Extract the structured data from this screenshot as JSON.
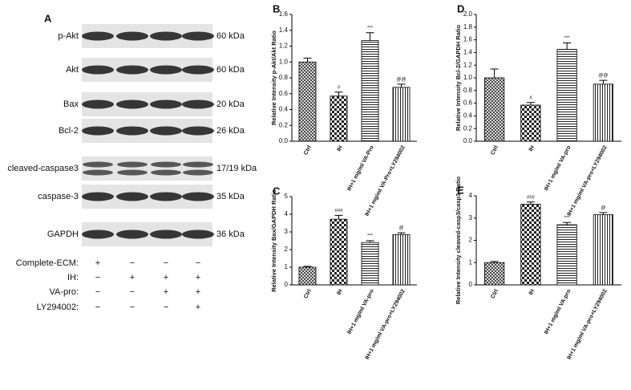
{
  "blot": {
    "panel": "A",
    "rows": [
      {
        "label": "p-Akt",
        "size": "60 kDa"
      },
      {
        "label": "Akt",
        "size": "60 kDa"
      },
      {
        "label": "Bax",
        "size": "20 kDa"
      },
      {
        "label": "Bcl-2",
        "size": "26 kDa"
      },
      {
        "label": "cleaved-caspase3",
        "size": "17/19 kDa"
      },
      {
        "label": "caspase-3",
        "size": "35 kDa"
      },
      {
        "label": "GAPDH",
        "size": "36 kDa"
      }
    ],
    "conditions": [
      {
        "label": "Complete-ECM:",
        "signs": [
          "+",
          "−",
          "−",
          "−"
        ]
      },
      {
        "label": "IH:",
        "signs": [
          "−",
          "+",
          "+",
          "+"
        ]
      },
      {
        "label": "VA-pro:",
        "signs": [
          "−",
          "−",
          "+",
          "+"
        ]
      },
      {
        "label": "LY294002:",
        "signs": [
          "−",
          "−",
          "−",
          "+"
        ]
      }
    ]
  },
  "chart_data": [
    {
      "type": "bar",
      "panel": "B",
      "y_label": "Relative Intensity p-Akt/Akt Ratio",
      "categories": [
        "Ctrl",
        "IH",
        "IH+1 mg/ml VA-Pro",
        "IH+1 mg/ml VA-Pro+LY294002"
      ],
      "values": [
        1.0,
        0.57,
        1.27,
        0.68
      ],
      "errors": [
        0.05,
        0.05,
        0.1,
        0.04
      ],
      "annotations": [
        null,
        "#",
        "***",
        "@@"
      ],
      "patterns": [
        "crosshatch",
        "checker",
        "horizontal",
        "vertical"
      ],
      "ylim": [
        0,
        1.6
      ],
      "yticks": [
        {
          "value": 0,
          "label": "0.0"
        },
        0.2,
        0.4,
        0.6,
        0.8,
        {
          "value": 1,
          "label": "1.0"
        },
        1.2,
        1.4,
        1.6
      ]
    },
    {
      "type": "bar",
      "panel": "D",
      "y_label": "Relative Intensity Bcl-2/GAPDH Ratio",
      "categories": [
        "Ctrl",
        "IH",
        "IH+1 mg/ml VA-pro",
        "IH+1 mg/ml VA-pro+LY294002"
      ],
      "values": [
        1.0,
        0.57,
        1.45,
        0.9
      ],
      "errors": [
        0.14,
        0.04,
        0.1,
        0.06
      ],
      "annotations": [
        null,
        "#",
        "***",
        "@@"
      ],
      "patterns": [
        "crosshatch",
        "checker",
        "horizontal",
        "vertical"
      ],
      "ylim": [
        0,
        2
      ],
      "yticks": [
        {
          "value": 0,
          "label": "0.0"
        },
        0.2,
        0.4,
        0.6,
        0.8,
        {
          "value": 1,
          "label": "1.0"
        },
        1.2,
        1.4,
        1.6,
        1.8,
        {
          "value": 2,
          "label": "2.0"
        }
      ]
    },
    {
      "type": "bar",
      "panel": "C",
      "y_label": "Relative Intensity Bax/GAPDH Ratio",
      "categories": [
        "Ctrl",
        "IH",
        "IH+1 mg/ml VA-pro",
        "IH+1 mg/ml VA-pro+LY294002"
      ],
      "values": [
        1.0,
        3.72,
        2.4,
        2.85
      ],
      "errors": [
        0.05,
        0.22,
        0.1,
        0.1
      ],
      "annotations": [
        null,
        "###",
        "***",
        "@"
      ],
      "patterns": [
        "crosshatch",
        "checker",
        "horizontal",
        "vertical"
      ],
      "ylim": [
        0,
        5
      ],
      "yticks": [
        0,
        1,
        2,
        3,
        4,
        5
      ]
    },
    {
      "type": "bar",
      "panel": "E",
      "y_label": "Relative Intensity cleaved-casp3/casp3 Ratio",
      "categories": [
        "Ctrl",
        "IH",
        "IH+1 mg/ml VA-pro",
        "IH+1 mg/ml VA-pro+LY294002"
      ],
      "values": [
        1.0,
        3.62,
        2.7,
        3.15
      ],
      "errors": [
        0.05,
        0.1,
        0.1,
        0.1
      ],
      "annotations": [
        null,
        "###",
        "***",
        "@"
      ],
      "patterns": [
        "crosshatch",
        "checker",
        "horizontal",
        "vertical"
      ],
      "ylim": [
        0,
        4
      ],
      "yticks": [
        0,
        1,
        2,
        3,
        4
      ]
    }
  ]
}
